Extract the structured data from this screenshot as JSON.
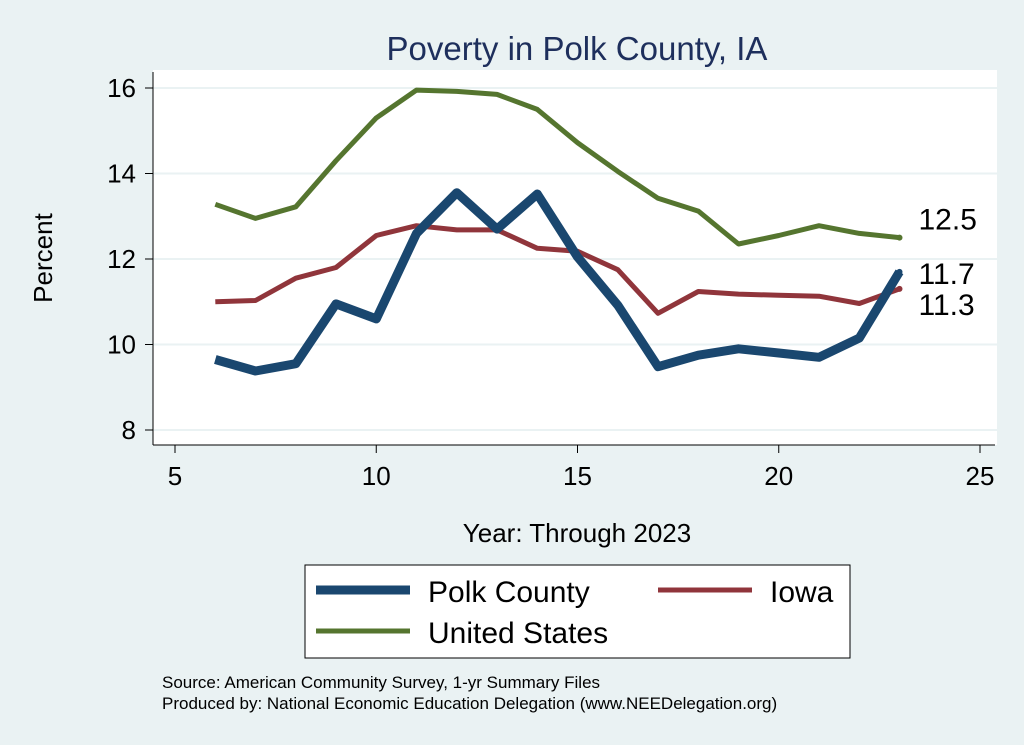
{
  "chart_data": {
    "type": "line",
    "title": "Poverty in Polk County, IA",
    "xlabel": "Year: Through 2023",
    "ylabel": "Percent",
    "xlim": [
      5,
      25
    ],
    "ylim": [
      7.6,
      16.3
    ],
    "xticks": [
      5,
      10,
      15,
      20,
      25
    ],
    "yticks": [
      8,
      10,
      12,
      14,
      16
    ],
    "grid": true,
    "legend_position": "bottom",
    "series": [
      {
        "name": "Polk County",
        "color": "#1A476F",
        "x": [
          6,
          7,
          8,
          9,
          10,
          11,
          12,
          13,
          14,
          15,
          16,
          17,
          18,
          19,
          20,
          21,
          22,
          23
        ],
        "y": [
          9.65,
          9.38,
          9.55,
          10.95,
          10.6,
          12.6,
          13.55,
          12.7,
          13.52,
          12.05,
          10.92,
          9.48,
          9.75,
          9.9,
          9.8,
          9.7,
          10.15,
          11.7
        ]
      },
      {
        "name": "Iowa",
        "color": "#90353B",
        "x": [
          6,
          7,
          8,
          9,
          10,
          11,
          12,
          13,
          14,
          15,
          16,
          17,
          18,
          19,
          20,
          21,
          22,
          23
        ],
        "y": [
          11.0,
          11.03,
          11.55,
          11.8,
          12.55,
          12.78,
          12.68,
          12.68,
          12.25,
          12.18,
          11.75,
          10.73,
          11.24,
          11.18,
          11.15,
          11.13,
          10.96,
          11.3
        ]
      },
      {
        "name": "United States",
        "color": "#55752F",
        "x": [
          6,
          7,
          8,
          9,
          10,
          11,
          12,
          13,
          14,
          15,
          16,
          17,
          18,
          19,
          20,
          21,
          22,
          23
        ],
        "y": [
          13.28,
          12.95,
          13.22,
          14.3,
          15.3,
          15.95,
          15.92,
          15.85,
          15.5,
          14.72,
          14.05,
          13.42,
          13.12,
          12.35,
          12.55,
          12.78,
          12.6,
          12.5
        ]
      }
    ],
    "end_labels": [
      {
        "series": "United States",
        "text": "12.5",
        "value": 12.5
      },
      {
        "series": "Polk County",
        "text": "11.7",
        "value": 11.7
      },
      {
        "series": "Iowa",
        "text": "11.3",
        "value": 11.3
      }
    ]
  },
  "notes": {
    "source": "Source: American Community Survey, 1-yr Summary Files",
    "produced_by": "Produced by: National Economic Education Delegation (www.NEEDelegation.org)"
  }
}
